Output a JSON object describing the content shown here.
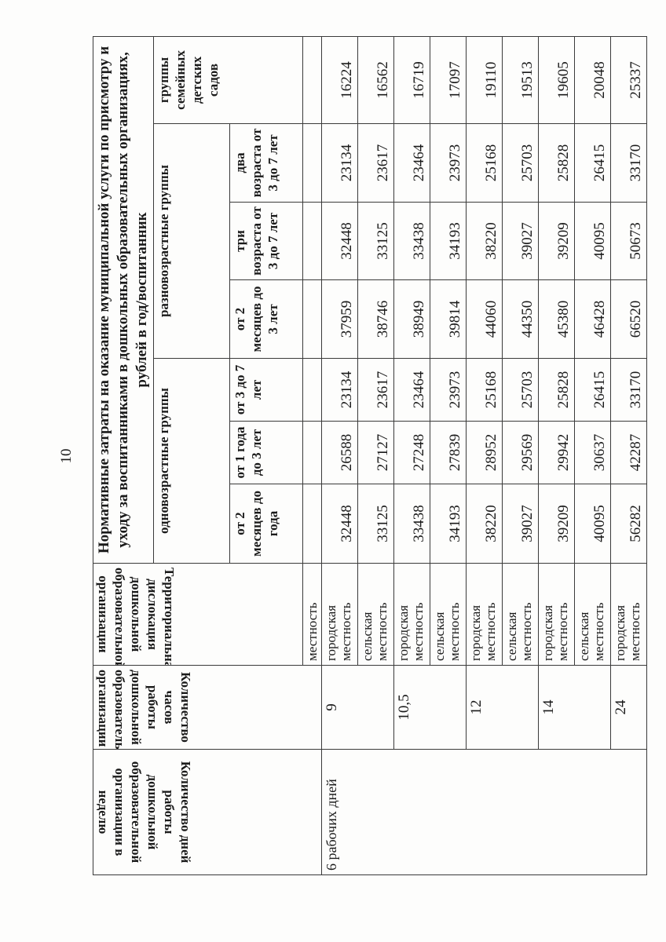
{
  "page_number": "10",
  "headers": {
    "days": "Количество дней работы дошкольной образовательной организации в неделю",
    "hours": "Количество часов работы дошкольной образовательной организации",
    "territory": "Территориальная дислокация дошкольной образовательной организации",
    "title": "Нормативные затраты на оказание муниципальной услуги по присмотру и уходу за воспитанниками в дошкольных образовательных организациях, рублей в год/воспитанник",
    "single_age": "одновозрастные группы",
    "mixed_age": "разновозрастные группы",
    "family": "группы семейных детских садов",
    "sub": [
      "от 2 месяцев до года",
      "от 1 года до 3 лет",
      "от 3 до 7 лет",
      "от 2 месяцев до 3 лет",
      "три возраста от 3 до 7 лет",
      "два возраста от 3 до 7 лет"
    ],
    "blank_row_territory": "местность"
  },
  "days_value": "6 рабочих дней",
  "hours_values": [
    "9",
    "10,5",
    "12",
    "14",
    "24"
  ],
  "rows": [
    {
      "loc": "городская местность",
      "v": [
        "32448",
        "26588",
        "23134",
        "37959",
        "32448",
        "23134",
        "16224"
      ]
    },
    {
      "loc": "сельская местность",
      "v": [
        "33125",
        "27127",
        "23617",
        "38746",
        "33125",
        "23617",
        "16562"
      ]
    },
    {
      "loc": "городская местность",
      "v": [
        "33438",
        "27248",
        "23464",
        "38949",
        "33438",
        "23464",
        "16719"
      ]
    },
    {
      "loc": "сельская местность",
      "v": [
        "34193",
        "27839",
        "23973",
        "39814",
        "34193",
        "23973",
        "17097"
      ]
    },
    {
      "loc": "городская местность",
      "v": [
        "38220",
        "28952",
        "25168",
        "44060",
        "38220",
        "25168",
        "19110"
      ]
    },
    {
      "loc": "сельская местность",
      "v": [
        "39027",
        "29569",
        "25703",
        "44350",
        "39027",
        "25703",
        "19513"
      ]
    },
    {
      "loc": "городская местность",
      "v": [
        "39209",
        "29942",
        "25828",
        "45380",
        "39209",
        "25828",
        "19605"
      ]
    },
    {
      "loc": "сельская местность",
      "v": [
        "40095",
        "30637",
        "26415",
        "46428",
        "40095",
        "26415",
        "20048"
      ]
    },
    {
      "loc": "городская местность",
      "v": [
        "56282",
        "42287",
        "33170",
        "66520",
        "50673",
        "33170",
        "25337"
      ]
    }
  ]
}
